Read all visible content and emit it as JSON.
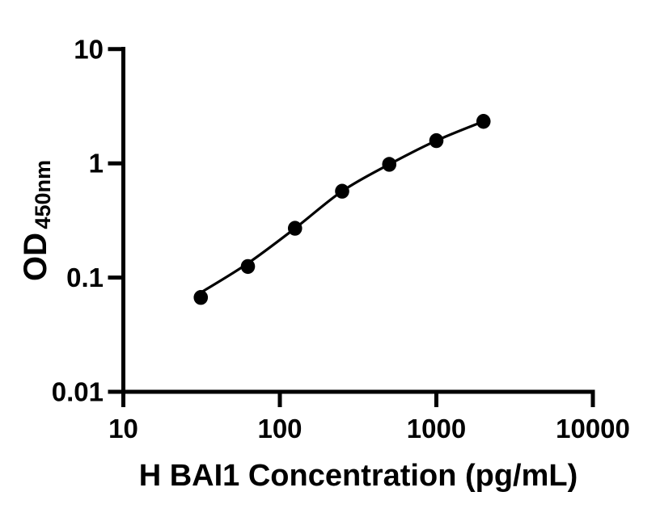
{
  "chart_data": {
    "type": "scatter",
    "xlabel": "H BAI1 Concentration (pg/mL)",
    "ylabel": "OD",
    "ylabel_subscript": "450nm",
    "x_scale": "log",
    "y_scale": "log",
    "xlim": [
      10,
      10000
    ],
    "ylim": [
      0.01,
      10
    ],
    "x_tick_labels": [
      "10",
      "100",
      "1000",
      "10000"
    ],
    "y_tick_labels": [
      "10",
      "1",
      "0.1",
      "0.01"
    ],
    "grid": false,
    "legend": "none",
    "ink_color": "#000000",
    "background_color": "#ffffff",
    "series": [
      {
        "x": [
          31.25,
          62.5,
          125,
          250,
          500,
          1000,
          2000
        ],
        "y": [
          0.067,
          0.125,
          0.27,
          0.57,
          0.98,
          1.58,
          2.33
        ],
        "marker": "filled-circle",
        "line": "smooth-fit-curve"
      }
    ]
  }
}
